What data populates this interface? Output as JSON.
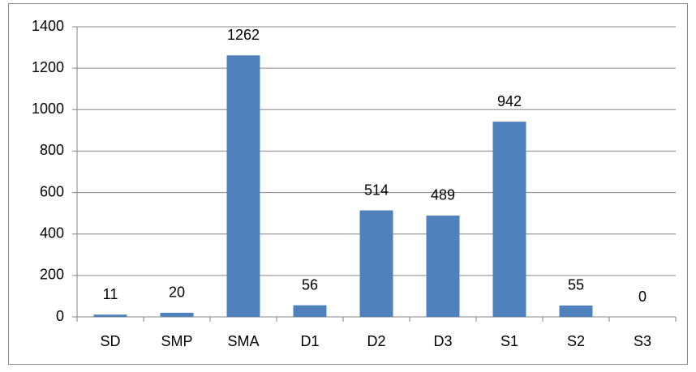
{
  "chart_data": {
    "type": "bar",
    "categories": [
      "SD",
      "SMP",
      "SMA",
      "D1",
      "D2",
      "D3",
      "S1",
      "S2",
      "S3"
    ],
    "values": [
      11,
      20,
      1262,
      56,
      514,
      489,
      942,
      55,
      0
    ],
    "color": "#4f81bd",
    "ylim": [
      0,
      1400
    ],
    "yticks": [
      0,
      200,
      400,
      600,
      800,
      1000,
      1200,
      1400
    ],
    "grid": true
  }
}
